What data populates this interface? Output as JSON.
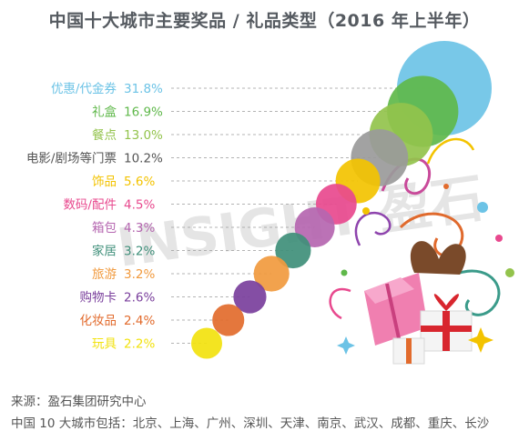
{
  "title": "中国十大城市主要奖品 / 礼品类型（2016 年上半年）",
  "watermark": "INSIGHT 盈石",
  "chart_data": {
    "type": "bubble",
    "title": "中国十大城市主要奖品 / 礼品类型（2016 年上半年）",
    "unit": "%",
    "categories": [
      "优惠/代金券",
      "礼盒",
      "餐点",
      "电影/剧场等门票",
      "饰品",
      "数码/配件",
      "箱包",
      "家居",
      "旅游",
      "购物卡",
      "化妆品",
      "玩具"
    ],
    "values": [
      31.8,
      16.9,
      13.0,
      10.2,
      5.6,
      4.5,
      4.3,
      3.2,
      3.2,
      2.6,
      2.4,
      2.2
    ],
    "value_labels": [
      "31.8%",
      "16.9%",
      "13.0%",
      "10.2%",
      "5.6%",
      "4.5%",
      "4.3%",
      "3.2%",
      "3.2%",
      "2.6%",
      "2.4%",
      "2.2%"
    ],
    "colors": [
      "#6cc3e6",
      "#5fb84a",
      "#93c34c",
      "#9a9a9a",
      "#f3c300",
      "#e8498e",
      "#b566b0",
      "#3f8f7a",
      "#f19a3e",
      "#7a3f9c",
      "#e26b2d",
      "#f2e20e"
    ],
    "legend": "none",
    "grid": false
  },
  "footer": {
    "source": "来源：盈石集团研究中心",
    "cities": "中国 10 大城市包括：北京、上海、广州、深圳、天津、南京、武汉、成都、重庆、长沙"
  }
}
